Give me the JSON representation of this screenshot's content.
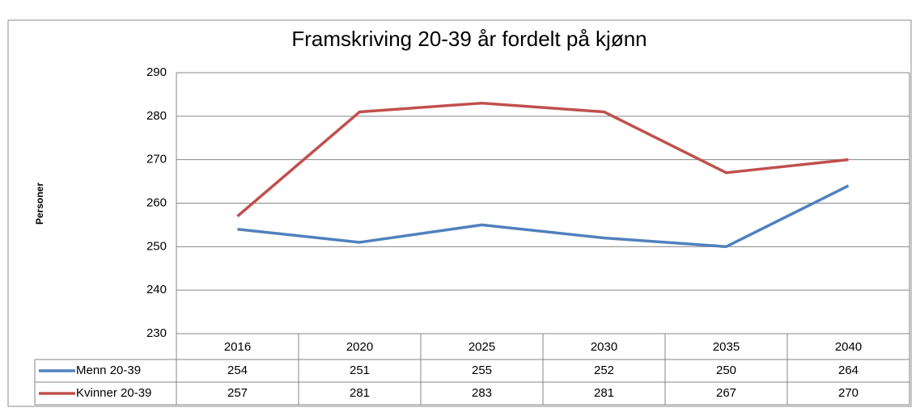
{
  "chart_data": {
    "type": "line",
    "title": "Framskriving 20-39 år fordelt på kjønn",
    "y_label": "Personer",
    "categories": [
      "2016",
      "2020",
      "2025",
      "2030",
      "2035",
      "2040"
    ],
    "series": [
      {
        "name": "Menn 20-39",
        "color": "#4f81bd",
        "values": [
          254,
          251,
          255,
          252,
          250,
          264
        ]
      },
      {
        "name": "Kvinner 20-39",
        "color": "#c0504d",
        "values": [
          257,
          281,
          283,
          281,
          267,
          270
        ]
      }
    ],
    "ylim": [
      230,
      290
    ],
    "yticks": [
      230,
      240,
      250,
      260,
      270,
      280,
      290
    ],
    "grid": true,
    "data_table": true
  }
}
